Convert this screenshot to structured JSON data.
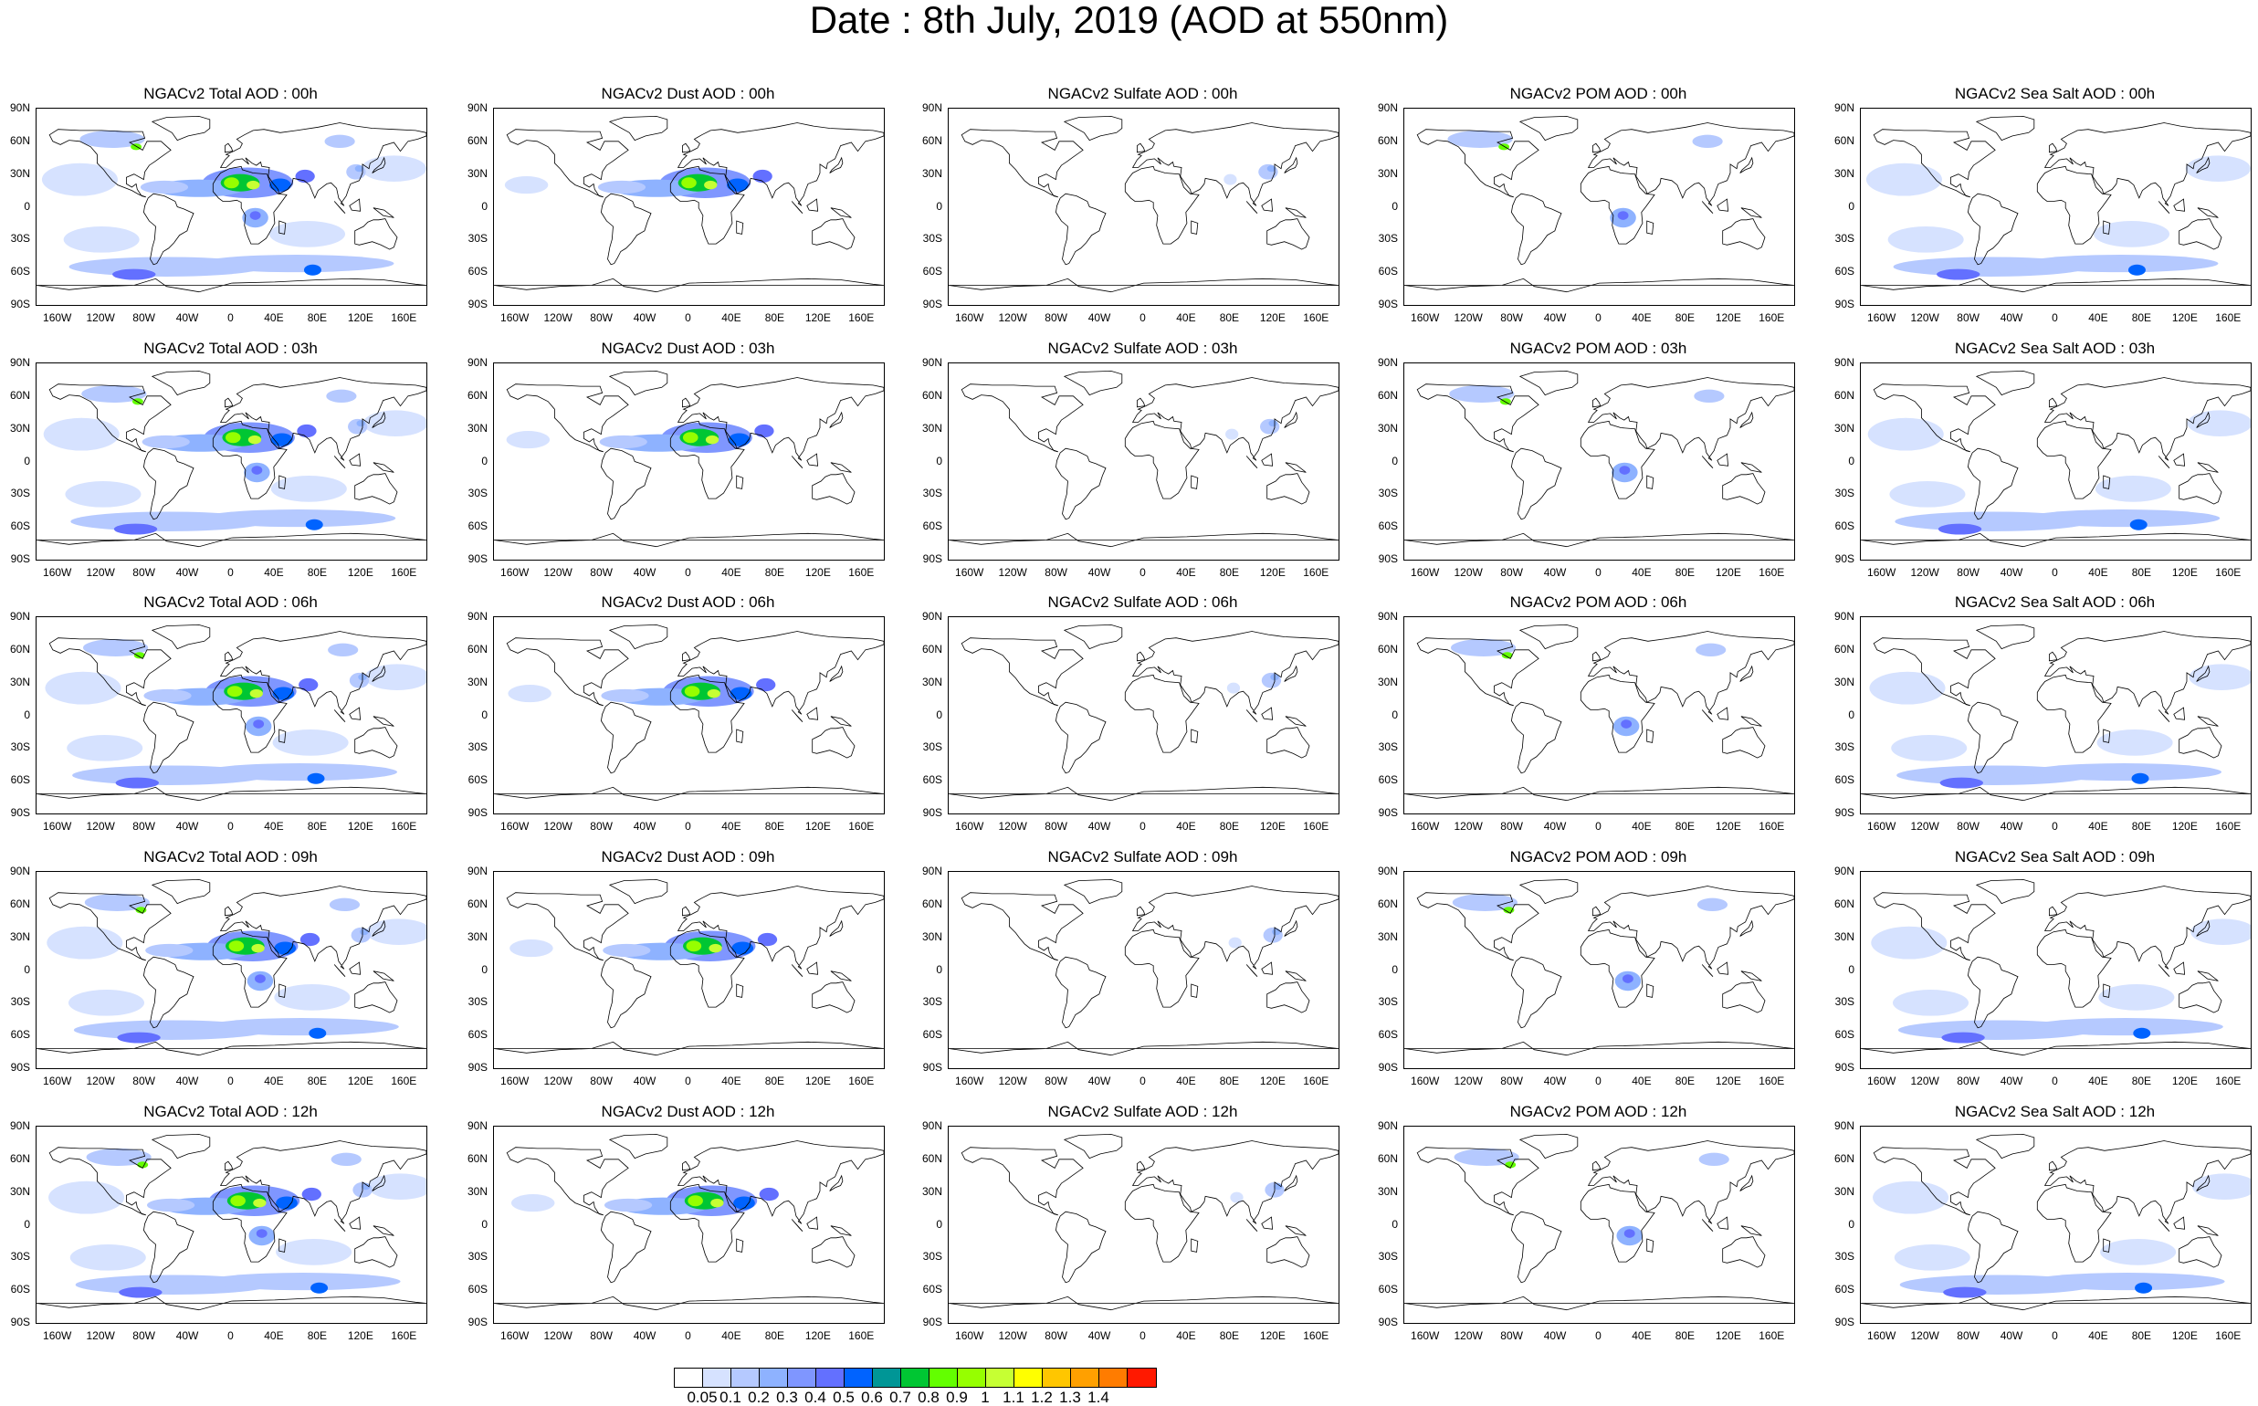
{
  "page": {
    "title": "Date : 8th July, 2019 (AOD at 550nm)"
  },
  "axes": {
    "lat_ticks": [
      "90N",
      "60N",
      "30N",
      "0",
      "30S",
      "60S",
      "90S"
    ],
    "lon_ticks": [
      "160W",
      "120W",
      "80W",
      "40W",
      "0",
      "40E",
      "80E",
      "120E",
      "160E"
    ]
  },
  "columns": [
    {
      "species": "total"
    },
    {
      "species": "dust"
    },
    {
      "species": "sulfate"
    },
    {
      "species": "pom"
    },
    {
      "species": "seasalt"
    }
  ],
  "titles": [
    [
      "NGACv2 Total AOD : 00h",
      "NGACv2 Dust AOD : 00h",
      "NGACv2 Sulfate AOD : 00h",
      "NGACv2 POM AOD : 00h",
      "NGACv2 Sea Salt AOD : 00h"
    ],
    [
      "NGACv2 Total AOD : 03h",
      "NGACv2 Dust AOD : 03h",
      "NGACv2 Sulfate AOD : 03h",
      "NGACv2 POM AOD : 03h",
      "NGACv2 Sea Salt AOD : 03h"
    ],
    [
      "NGACv2 Total AOD : 06h",
      "NGACv2 Dust AOD : 06h",
      "NGACv2 Sulfate AOD : 06h",
      "NGACv2 POM AOD : 06h",
      "NGACv2 Sea Salt AOD : 06h"
    ],
    [
      "NGACv2 Total AOD : 09h",
      "NGACv2 Dust AOD : 09h",
      "NGACv2 Sulfate AOD : 09h",
      "NGACv2 POM AOD : 09h",
      "NGACv2 Sea Salt  AOD : 09h"
    ],
    [
      "NGACv2 Total AOD  : 12h",
      "NGACv2 Dust AOD : 12h",
      "NGACv2 Sulfate AOD : 12h",
      "NGACv2 POM  AOD : 12h",
      "NGACv2 Sea Salt AOD : 12h"
    ]
  ],
  "colorbar": {
    "labels": [
      "0.05",
      "0.1",
      "0.2",
      "0.3",
      "0.4",
      "0.5",
      "0.6",
      "0.7",
      "0.8",
      "0.9",
      "1",
      "1.1",
      "1.2",
      "1.3",
      "1.4"
    ],
    "colors": [
      "#ffffff",
      "#d6e2ff",
      "#b5c9ff",
      "#8eb2ff",
      "#7f96ff",
      "#6370ff",
      "#0063ff",
      "#009696",
      "#00c633",
      "#63ff00",
      "#96ff00",
      "#c6ff33",
      "#ffff00",
      "#ffc600",
      "#ffa000",
      "#ff7c00",
      "#ff1900"
    ]
  }
}
